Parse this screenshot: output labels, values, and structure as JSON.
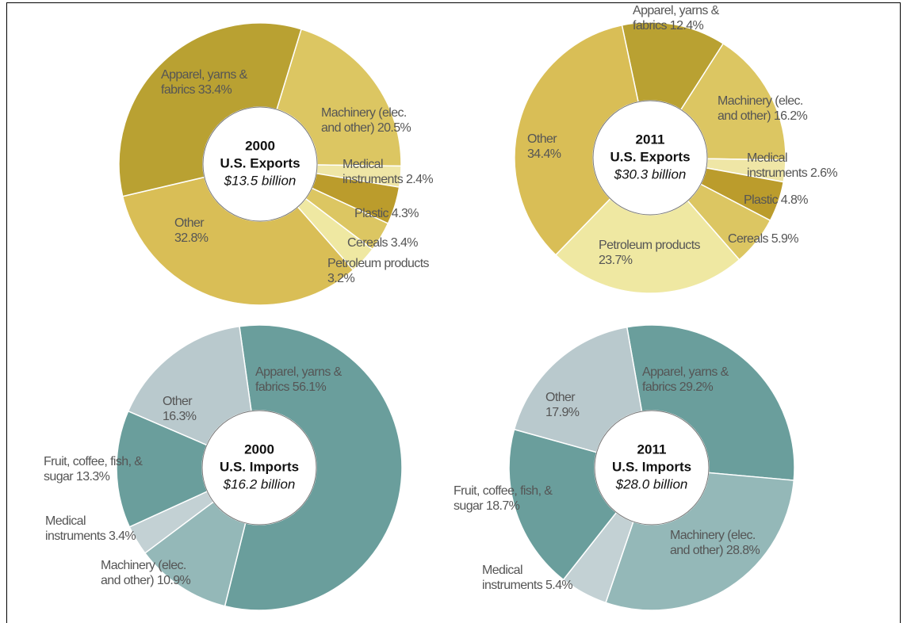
{
  "chart_data": [
    {
      "type": "pie",
      "title": "2000",
      "subtitle": "U.S. Exports",
      "total": "$13.5 billion",
      "categories": [
        "Machinery (elec. and other)",
        "Medical instruments",
        "Plastic",
        "Cereals",
        "Petroleum products",
        "Other",
        "Apparel, yarns & fabrics"
      ],
      "values": [
        20.5,
        2.4,
        4.3,
        3.4,
        3.2,
        32.8,
        33.4
      ],
      "value_labels": [
        "20.5%",
        "2.4%",
        "4.3%",
        "3.4%",
        "3.2%",
        "32.8%",
        "33.4%"
      ],
      "colors": [
        "#dcc662",
        "#efe6a6",
        "#bb9c2c",
        "#dcc662",
        "#efe8a2",
        "#d9be56",
        "#b9a132"
      ]
    },
    {
      "type": "pie",
      "title": "2011",
      "subtitle": "U.S. Exports",
      "total": "$30.3 billion",
      "categories": [
        "Apparel, yarns & fabrics",
        "Machinery (elec. and other)",
        "Medical instruments",
        "Plastic",
        "Cereals",
        "Petroleum products",
        "Other"
      ],
      "values": [
        12.4,
        16.2,
        2.6,
        4.8,
        5.9,
        23.7,
        34.4
      ],
      "value_labels": [
        "12.4%",
        "16.2%",
        "2.6%",
        "4.8%",
        "5.9%",
        "23.7%",
        "34.4%"
      ],
      "colors": [
        "#b9a132",
        "#dcc662",
        "#efe6a6",
        "#bb9c2c",
        "#dcc662",
        "#efe8a2",
        "#d9be56"
      ]
    },
    {
      "type": "pie",
      "title": "2000",
      "subtitle": "U.S. Imports",
      "total": "$16.2 billion",
      "categories": [
        "Apparel, yarns & fabrics",
        "Machinery (elec. and other)",
        "Medical instruments",
        "Fruit, coffee, fish, & sugar",
        "Other"
      ],
      "values": [
        56.1,
        10.9,
        3.4,
        13.3,
        16.3
      ],
      "value_labels": [
        "56.1%",
        "10.9%",
        "3.4%",
        "13.3%",
        "16.3%"
      ],
      "colors": [
        "#6a9e9c",
        "#94b8b8",
        "#c3d1d4",
        "#6a9e9c",
        "#b9c9cd"
      ]
    },
    {
      "type": "pie",
      "title": "2011",
      "subtitle": "U.S. Imports",
      "total": "$28.0 billion",
      "categories": [
        "Apparel, yarns & fabrics",
        "Machinery (elec. and other)",
        "Medical instruments",
        "Fruit, coffee, fish, & sugar",
        "Other"
      ],
      "values": [
        29.2,
        28.8,
        5.4,
        18.7,
        17.9
      ],
      "value_labels": [
        "29.2%",
        "28.8%",
        "5.4%",
        "18.7%",
        "17.9%"
      ],
      "colors": [
        "#6a9e9c",
        "#94b8b8",
        "#c3d1d4",
        "#6a9e9c",
        "#b9c9cd"
      ]
    }
  ]
}
